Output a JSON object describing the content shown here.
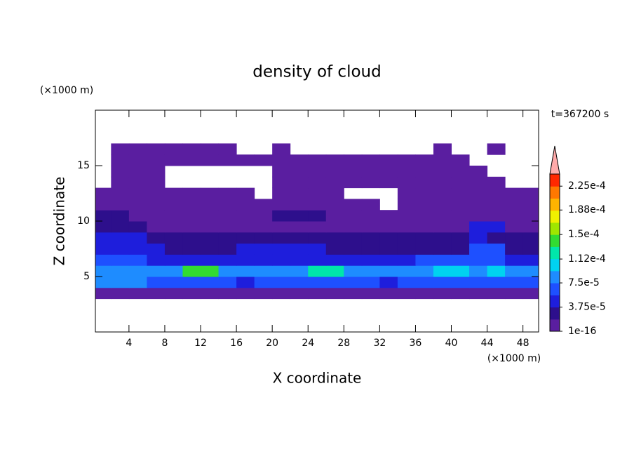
{
  "chart_data": {
    "type": "contour",
    "title": "density of cloud",
    "xlabel": "X coordinate",
    "ylabel": "Z coordinate",
    "xunit": "(×1000 m)",
    "yunit": "(×1000 m)",
    "time_label": "t=367200 s",
    "xlim": [
      0.25,
      49.75
    ],
    "ylim": [
      0,
      20
    ],
    "xticks": [
      4,
      8,
      12,
      16,
      20,
      24,
      28,
      32,
      36,
      40,
      44,
      48
    ],
    "yticks": [
      5,
      10,
      15
    ],
    "x": [
      1,
      3,
      5,
      7,
      9,
      11,
      13,
      15,
      17,
      19,
      21,
      23,
      25,
      27,
      29,
      31,
      33,
      35,
      37,
      39,
      41,
      43,
      45,
      47,
      49
    ],
    "y": [
      3.5,
      4.5,
      5.5,
      6.5,
      7.5,
      8.5,
      9.5,
      10.5,
      11.5,
      12.5,
      13.5,
      14.5,
      15.5,
      16.5
    ],
    "z": [
      [
        5e-06,
        5e-06,
        5e-06,
        5e-06,
        5e-06,
        5e-06,
        5e-06,
        5e-06,
        5e-06,
        5e-06,
        5e-06,
        5e-06,
        5e-06,
        5e-06,
        5e-06,
        5e-06,
        5e-06,
        5e-06,
        5e-06,
        5e-06,
        5e-06,
        5e-06,
        5e-06,
        5e-06,
        5e-06
      ],
      [
        8.5e-05,
        8.5e-05,
        8.5e-05,
        6.5e-05,
        6.5e-05,
        6.5e-05,
        6.5e-05,
        6.5e-05,
        4.5e-05,
        6.5e-05,
        6.5e-05,
        6.5e-05,
        6.5e-05,
        6.5e-05,
        6.5e-05,
        6.5e-05,
        4.5e-05,
        6.5e-05,
        6.5e-05,
        6.5e-05,
        6.5e-05,
        6.5e-05,
        6.5e-05,
        6.5e-05,
        6.5e-05
      ],
      [
        8.5e-05,
        8.5e-05,
        8.5e-05,
        8.5e-05,
        8.5e-05,
        0.00014,
        0.00014,
        8.5e-05,
        8.5e-05,
        8.5e-05,
        8.5e-05,
        8.5e-05,
        0.00012,
        0.00012,
        8.5e-05,
        8.5e-05,
        8.5e-05,
        8.5e-05,
        8.5e-05,
        0.000105,
        0.000105,
        8.5e-05,
        0.000105,
        8.5e-05,
        8.5e-05
      ],
      [
        6.5e-05,
        6.5e-05,
        6.5e-05,
        4.5e-05,
        4.5e-05,
        4.5e-05,
        4.5e-05,
        4.5e-05,
        4.5e-05,
        4.5e-05,
        4.5e-05,
        4.5e-05,
        4.5e-05,
        4.5e-05,
        4.5e-05,
        4.5e-05,
        4.5e-05,
        4.5e-05,
        6.5e-05,
        6.5e-05,
        6.5e-05,
        6.5e-05,
        6.5e-05,
        4.5e-05,
        4.5e-05
      ],
      [
        4.5e-05,
        4.5e-05,
        4.5e-05,
        4.5e-05,
        2.5e-05,
        2.5e-05,
        2.5e-05,
        2.5e-05,
        4.5e-05,
        4.5e-05,
        4.5e-05,
        4.5e-05,
        4.5e-05,
        2.5e-05,
        2.5e-05,
        2.5e-05,
        2.5e-05,
        2.5e-05,
        2.5e-05,
        2.5e-05,
        2.5e-05,
        6.5e-05,
        6.5e-05,
        2.5e-05,
        2.5e-05
      ],
      [
        4.5e-05,
        4.5e-05,
        4.5e-05,
        2.5e-05,
        2.5e-05,
        2.5e-05,
        2.5e-05,
        2.5e-05,
        2.5e-05,
        2.5e-05,
        2.5e-05,
        2.5e-05,
        2.5e-05,
        2.5e-05,
        2.5e-05,
        2.5e-05,
        2.5e-05,
        2.5e-05,
        2.5e-05,
        2.5e-05,
        2.5e-05,
        4.5e-05,
        2.5e-05,
        2.5e-05,
        2.5e-05
      ],
      [
        2.5e-05,
        2.5e-05,
        2.5e-05,
        5e-06,
        5e-06,
        5e-06,
        5e-06,
        5e-06,
        5e-06,
        5e-06,
        5e-06,
        5e-06,
        5e-06,
        5e-06,
        5e-06,
        5e-06,
        5e-06,
        5e-06,
        5e-06,
        5e-06,
        5e-06,
        4.5e-05,
        4.5e-05,
        5e-06,
        5e-06
      ],
      [
        2.5e-05,
        2.5e-05,
        5e-06,
        5e-06,
        5e-06,
        5e-06,
        5e-06,
        5e-06,
        5e-06,
        5e-06,
        2.5e-05,
        2.5e-05,
        2.5e-05,
        5e-06,
        5e-06,
        5e-06,
        5e-06,
        5e-06,
        5e-06,
        5e-06,
        5e-06,
        5e-06,
        5e-06,
        5e-06,
        5e-06
      ],
      [
        5e-06,
        5e-06,
        5e-06,
        5e-06,
        5e-06,
        5e-06,
        5e-06,
        5e-06,
        5e-06,
        5e-06,
        5e-06,
        5e-06,
        5e-06,
        5e-06,
        5e-06,
        5e-06,
        null,
        5e-06,
        5e-06,
        5e-06,
        5e-06,
        5e-06,
        5e-06,
        5e-06,
        5e-06
      ],
      [
        5e-06,
        5e-06,
        5e-06,
        5e-06,
        5e-06,
        5e-06,
        5e-06,
        5e-06,
        5e-06,
        null,
        5e-06,
        5e-06,
        5e-06,
        5e-06,
        null,
        null,
        null,
        5e-06,
        5e-06,
        5e-06,
        5e-06,
        5e-06,
        5e-06,
        5e-06,
        5e-06
      ],
      [
        null,
        5e-06,
        5e-06,
        5e-06,
        null,
        null,
        null,
        null,
        null,
        null,
        5e-06,
        5e-06,
        5e-06,
        5e-06,
        5e-06,
        5e-06,
        5e-06,
        5e-06,
        5e-06,
        5e-06,
        5e-06,
        5e-06,
        5e-06,
        null,
        null
      ],
      [
        null,
        5e-06,
        5e-06,
        5e-06,
        null,
        null,
        null,
        null,
        null,
        null,
        5e-06,
        5e-06,
        5e-06,
        5e-06,
        5e-06,
        5e-06,
        5e-06,
        5e-06,
        5e-06,
        5e-06,
        5e-06,
        5e-06,
        null,
        null,
        null
      ],
      [
        null,
        5e-06,
        5e-06,
        5e-06,
        5e-06,
        5e-06,
        5e-06,
        5e-06,
        5e-06,
        5e-06,
        5e-06,
        5e-06,
        5e-06,
        5e-06,
        5e-06,
        5e-06,
        5e-06,
        5e-06,
        5e-06,
        5e-06,
        5e-06,
        null,
        null,
        null,
        null
      ],
      [
        null,
        5e-06,
        5e-06,
        5e-06,
        5e-06,
        5e-06,
        5e-06,
        5e-06,
        null,
        null,
        5e-06,
        null,
        null,
        null,
        null,
        null,
        null,
        null,
        null,
        5e-06,
        null,
        null,
        5e-06,
        null,
        null
      ]
    ],
    "colorbar": {
      "levels": [
        1e-16,
        1.875e-05,
        3.75e-05,
        5.625e-05,
        7.5e-05,
        9.375e-05,
        0.0001125,
        0.00013125,
        0.00015,
        0.00016875,
        0.0001875,
        0.00020625,
        0.000225,
        0.00024375
      ],
      "colors": [
        "#5a1ea0",
        "#2d0f8c",
        "#1e1edc",
        "#1e50ff",
        "#1e8cff",
        "#00d2f0",
        "#00e6aa",
        "#32dc32",
        "#a0e600",
        "#f0f000",
        "#ffb400",
        "#ff7800",
        "#ff2800"
      ],
      "extend_color": "#ffaaaa",
      "ticks": [
        {
          "value": 1e-16,
          "label": "1e-16"
        },
        {
          "value": 3.75e-05,
          "label": "3.75e-5"
        },
        {
          "value": 7.5e-05,
          "label": "7.5e-5"
        },
        {
          "value": 0.000112,
          "label": "1.12e-4"
        },
        {
          "value": 0.00015,
          "label": "1.5e-4"
        },
        {
          "value": 0.000188,
          "label": "1.88e-4"
        },
        {
          "value": 0.000225,
          "label": "2.25e-4"
        }
      ]
    }
  }
}
